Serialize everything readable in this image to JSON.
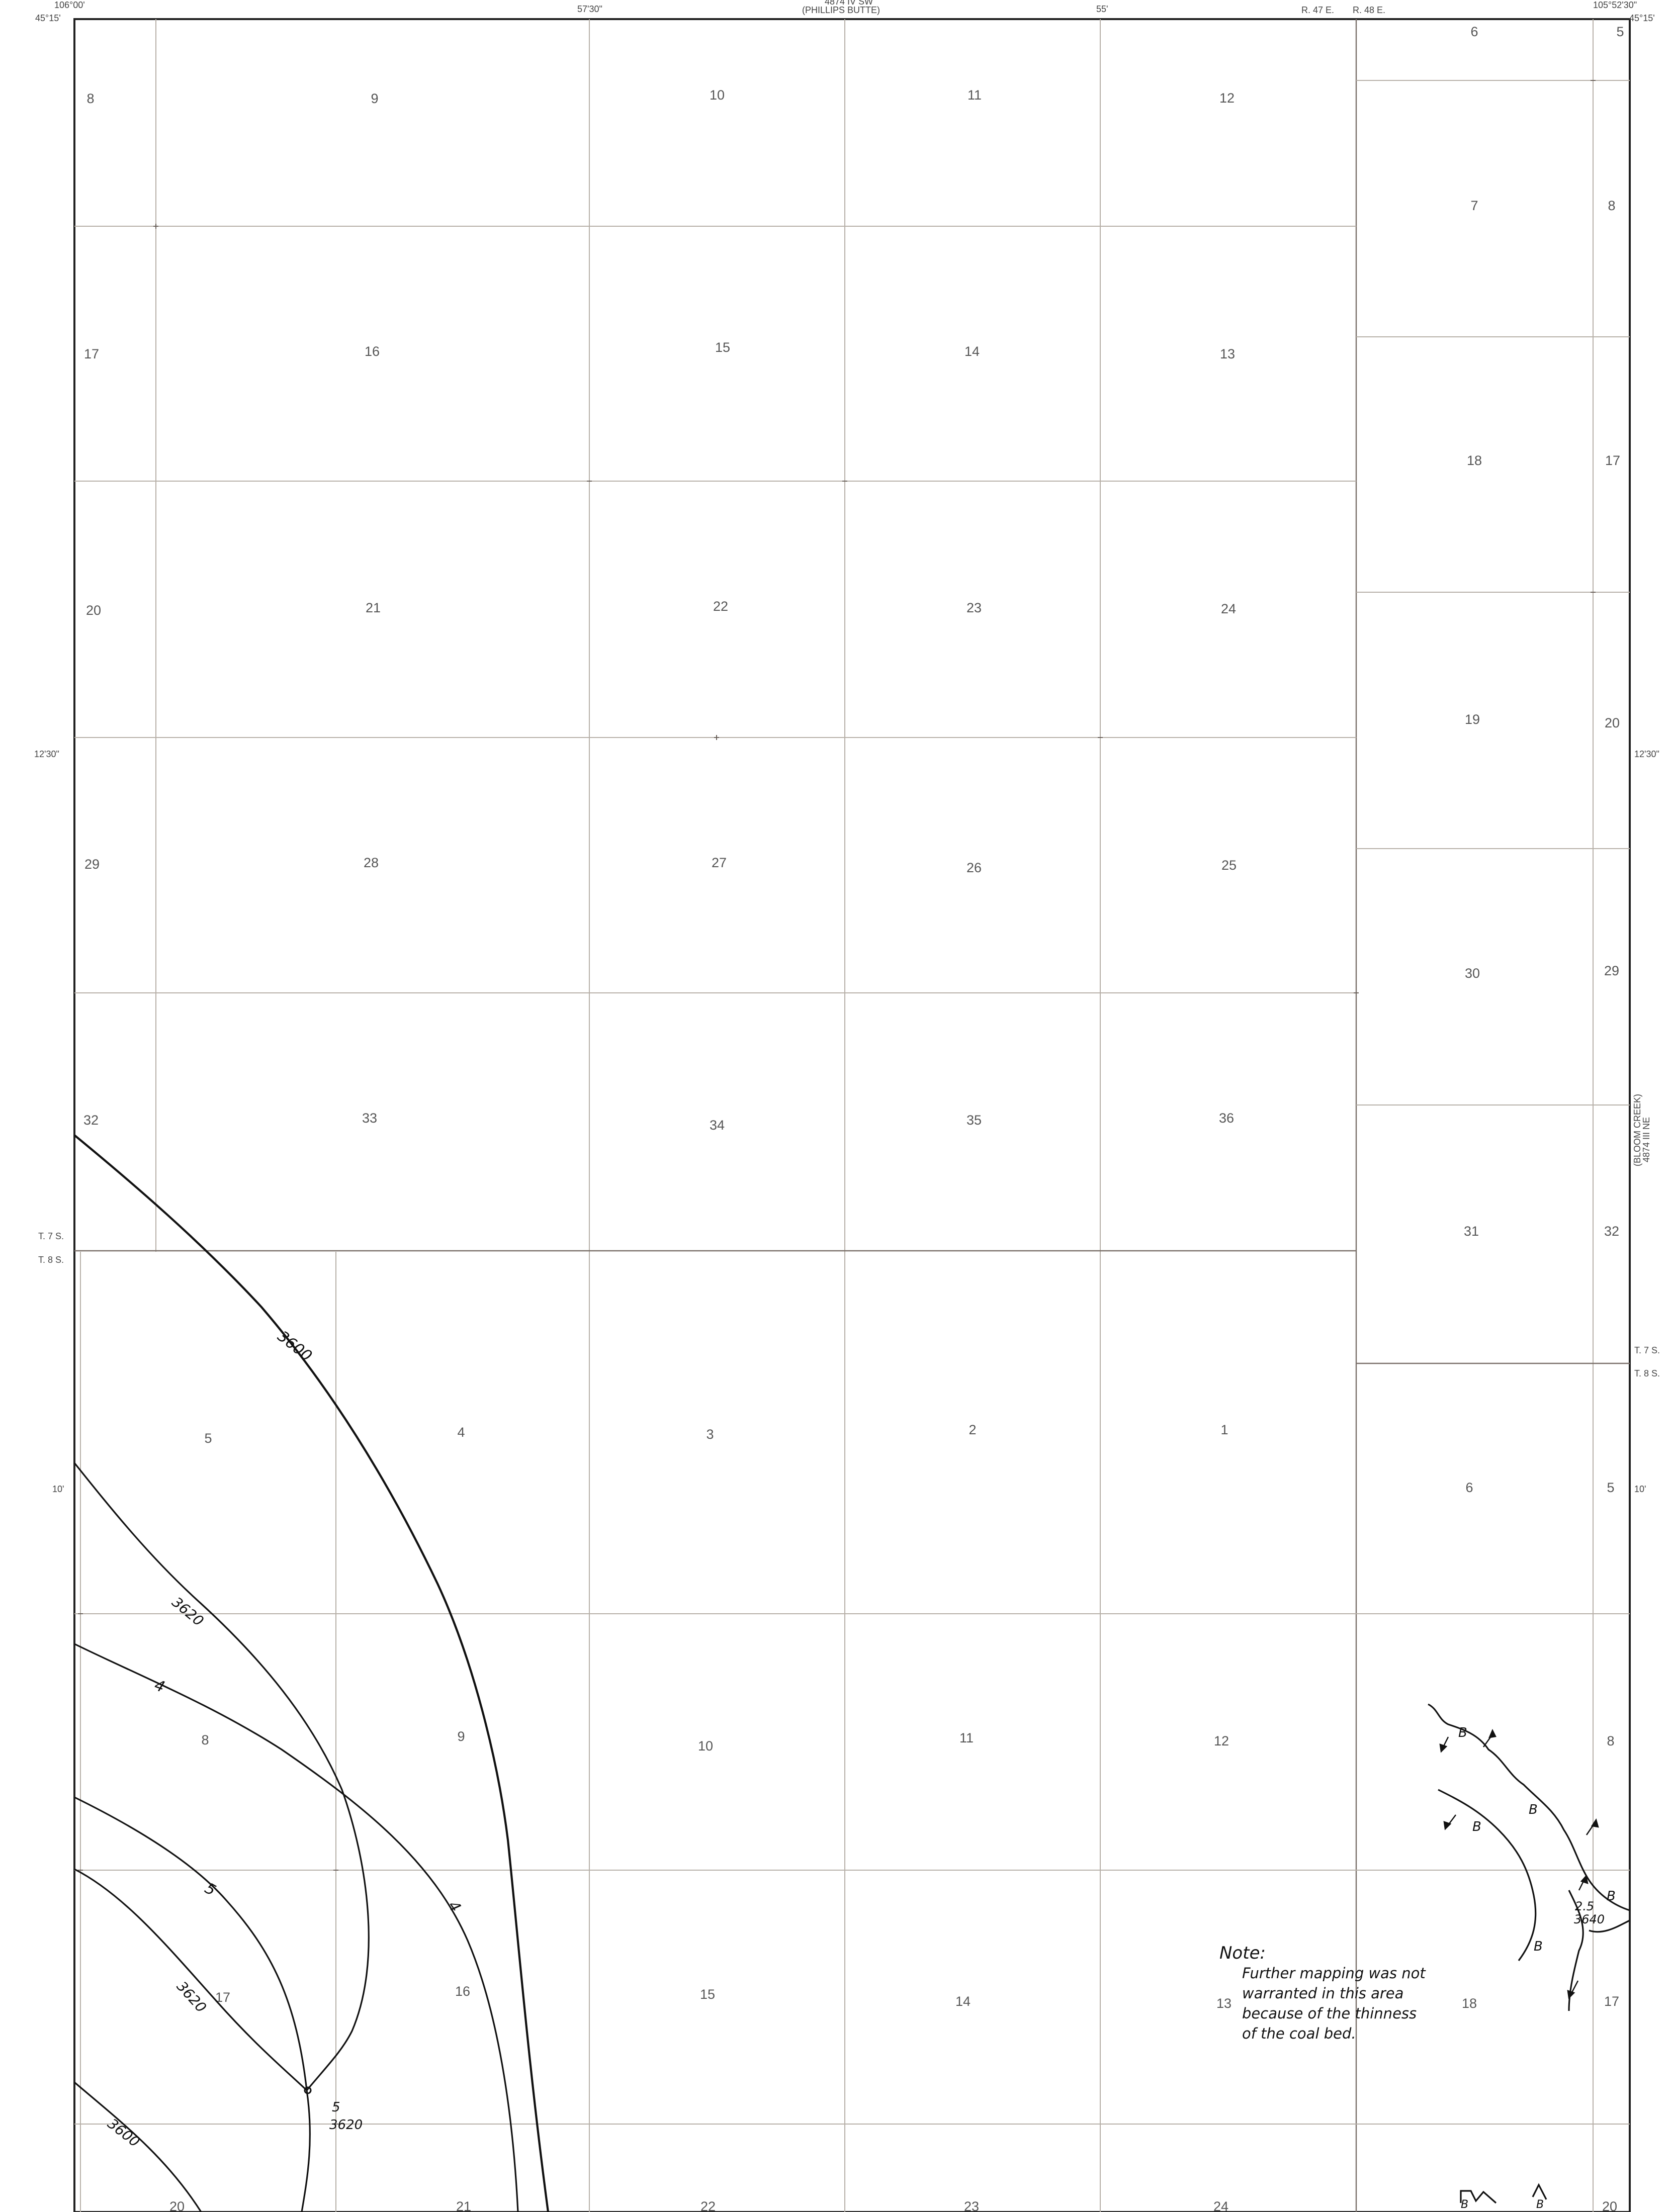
{
  "margin": {
    "lon_left": "106°00'",
    "lat_top_left": "45°15'",
    "lon_5730": "57'30\"",
    "adjacent_top_code": "4874 IV SW",
    "adjacent_top_name": "(PHILLIPS BUTTE)",
    "lon_55": "55'",
    "range_47": "R. 47 E.",
    "range_48": "R. 48 E.",
    "lon_right": "105°52'30\"",
    "lat_top_right": "45°15'",
    "lat_1230_left": "12'30\"",
    "lat_1230_right": "12'30\"",
    "lat_10_left": "10'",
    "lat_10_right": "10'",
    "twp_left_t7": "T. 7 S.",
    "twp_left_t8": "T. 8 S.",
    "twp_right_t7": "T. 7 S.",
    "twp_right_t8": "T. 8 S.",
    "adjacent_right_name": "(BLOOM CREEK)",
    "adjacent_right_code": "4874 III NE"
  },
  "sections": [
    {
      "id": "8a",
      "label": "8"
    },
    {
      "id": "9a",
      "label": "9"
    },
    {
      "id": "10a",
      "label": "10"
    },
    {
      "id": "11a",
      "label": "11"
    },
    {
      "id": "12a",
      "label": "12"
    },
    {
      "id": "6a",
      "label": "6"
    },
    {
      "id": "5a",
      "label": "5"
    },
    {
      "id": "7a",
      "label": "7"
    },
    {
      "id": "8b",
      "label": "8"
    },
    {
      "id": "17a",
      "label": "17"
    },
    {
      "id": "16a",
      "label": "16"
    },
    {
      "id": "15a",
      "label": "15"
    },
    {
      "id": "14a",
      "label": "14"
    },
    {
      "id": "13a",
      "label": "13"
    },
    {
      "id": "18a",
      "label": "18"
    },
    {
      "id": "17b",
      "label": "17"
    },
    {
      "id": "20a",
      "label": "20"
    },
    {
      "id": "21a",
      "label": "21"
    },
    {
      "id": "22a",
      "label": "22"
    },
    {
      "id": "23a",
      "label": "23"
    },
    {
      "id": "24a",
      "label": "24"
    },
    {
      "id": "19a",
      "label": "19"
    },
    {
      "id": "20b",
      "label": "20"
    },
    {
      "id": "29a",
      "label": "29"
    },
    {
      "id": "28a",
      "label": "28"
    },
    {
      "id": "27a",
      "label": "27"
    },
    {
      "id": "26a",
      "label": "26"
    },
    {
      "id": "25a",
      "label": "25"
    },
    {
      "id": "30a",
      "label": "30"
    },
    {
      "id": "29b",
      "label": "29"
    },
    {
      "id": "32a",
      "label": "32"
    },
    {
      "id": "33a",
      "label": "33"
    },
    {
      "id": "34a",
      "label": "34"
    },
    {
      "id": "35a",
      "label": "35"
    },
    {
      "id": "36a",
      "label": "36"
    },
    {
      "id": "31a",
      "label": "31"
    },
    {
      "id": "32b",
      "label": "32"
    },
    {
      "id": "5b",
      "label": "5"
    },
    {
      "id": "4b",
      "label": "4"
    },
    {
      "id": "3b",
      "label": "3"
    },
    {
      "id": "2b",
      "label": "2"
    },
    {
      "id": "1b",
      "label": "1"
    },
    {
      "id": "6b",
      "label": "6"
    },
    {
      "id": "5c",
      "label": "5"
    },
    {
      "id": "8c",
      "label": "8"
    },
    {
      "id": "9b",
      "label": "9"
    },
    {
      "id": "10b",
      "label": "10"
    },
    {
      "id": "11b",
      "label": "11"
    },
    {
      "id": "12b",
      "label": "12"
    },
    {
      "id": "8d",
      "label": "8"
    },
    {
      "id": "17c",
      "label": "17"
    },
    {
      "id": "16b",
      "label": "16"
    },
    {
      "id": "15b",
      "label": "15"
    },
    {
      "id": "14b",
      "label": "14"
    },
    {
      "id": "13b",
      "label": "13"
    },
    {
      "id": "18b",
      "label": "18"
    },
    {
      "id": "17d",
      "label": "17"
    },
    {
      "id": "20c",
      "label": "20"
    },
    {
      "id": "21b",
      "label": "21"
    },
    {
      "id": "22b",
      "label": "22"
    },
    {
      "id": "23b",
      "label": "23"
    },
    {
      "id": "24b",
      "label": "24"
    },
    {
      "id": "20d",
      "label": "20"
    }
  ],
  "contours": {
    "c3600_upper": "3600",
    "c3620_mid": "3620",
    "c4_left": "4",
    "c4_right": "4",
    "c5": "5",
    "c3620_lower": "3620",
    "c3600_lower": "3600",
    "spot_thickness": "5",
    "spot_elevation": "3620",
    "outcrop_thickness": "2.5",
    "outcrop_elevation": "3640",
    "outcrop_marker": "B"
  },
  "note": {
    "title": "Note:",
    "line1": "Further mapping was not",
    "line2": "warranted in this area",
    "line3": "because of the thinness",
    "line4": "of the coal bed."
  }
}
